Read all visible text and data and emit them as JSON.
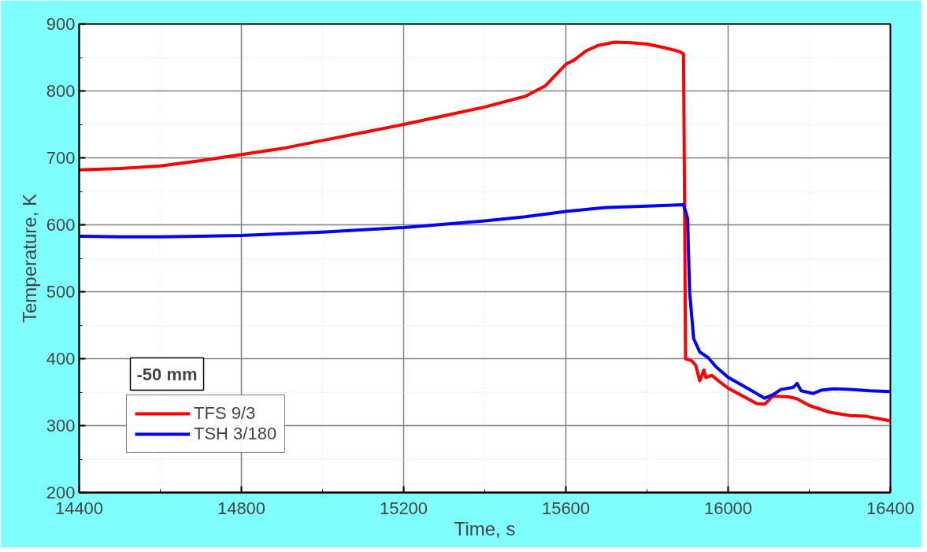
{
  "chart_data": {
    "type": "line",
    "xlabel": "Time, s",
    "ylabel": "Temperature, K",
    "xlim": [
      14400,
      16400
    ],
    "xticks": [
      14400,
      {
        "value": 14600,
        "label": null
      },
      14800,
      {
        "value": 15000,
        "label": null
      },
      15200,
      {
        "value": 15400,
        "label": null
      },
      15600,
      {
        "value": 15800,
        "label": null
      },
      16000,
      {
        "value": 16200,
        "label": null
      },
      16400
    ],
    "ylim": [
      200,
      900
    ],
    "yticks": [
      200,
      {
        "value": 250,
        "label": null
      },
      300,
      {
        "value": 350,
        "label": null
      },
      400,
      {
        "value": 450,
        "label": null
      },
      500,
      {
        "value": 550,
        "label": null
      },
      600,
      {
        "value": 650,
        "label": null
      },
      700,
      {
        "value": 750,
        "label": null
      },
      800,
      {
        "value": 850,
        "label": null
      },
      900
    ],
    "grid": true,
    "legend": "bottom left",
    "annotations": [
      "-50 mm"
    ],
    "series": [
      {
        "name": "TFS 9/3",
        "color": "#ff0000",
        "x": [
          14400,
          14500,
          14600,
          14700,
          14800,
          14900,
          15000,
          15100,
          15200,
          15300,
          15400,
          15500,
          15550,
          15600,
          15620,
          15650,
          15680,
          15720,
          15760,
          15800,
          15840,
          15880,
          15890,
          15893,
          15895,
          15910,
          15920,
          15930,
          15940,
          15945,
          15960,
          15980,
          16000,
          16040,
          16070,
          16090,
          16110,
          16150,
          16170,
          16200,
          16250,
          16300,
          16340,
          16400
        ],
        "values": [
          682,
          684,
          688,
          696,
          705,
          714,
          726,
          738,
          750,
          763,
          776,
          792,
          808,
          840,
          846,
          860,
          868,
          873,
          872,
          870,
          865,
          859,
          855,
          600,
          400,
          397,
          390,
          367,
          383,
          372,
          375,
          365,
          356,
          343,
          333,
          332,
          344,
          343,
          340,
          330,
          320,
          315,
          314,
          307
        ]
      },
      {
        "name": "TSH 3/180",
        "color": "#0000ff",
        "x": [
          14400,
          14500,
          14600,
          14800,
          15000,
          15200,
          15400,
          15500,
          15600,
          15700,
          15800,
          15890,
          15900,
          15905,
          15915,
          15930,
          15950,
          15970,
          16000,
          16050,
          16090,
          16110,
          16130,
          16160,
          16170,
          16180,
          16210,
          16230,
          16260,
          16300,
          16350,
          16400
        ],
        "values": [
          583,
          582,
          582,
          584,
          589,
          596,
          606,
          612,
          620,
          626,
          628,
          630,
          610,
          500,
          430,
          410,
          402,
          388,
          372,
          355,
          341,
          346,
          354,
          357,
          363,
          352,
          348,
          353,
          355,
          354,
          352,
          351
        ]
      }
    ]
  }
}
